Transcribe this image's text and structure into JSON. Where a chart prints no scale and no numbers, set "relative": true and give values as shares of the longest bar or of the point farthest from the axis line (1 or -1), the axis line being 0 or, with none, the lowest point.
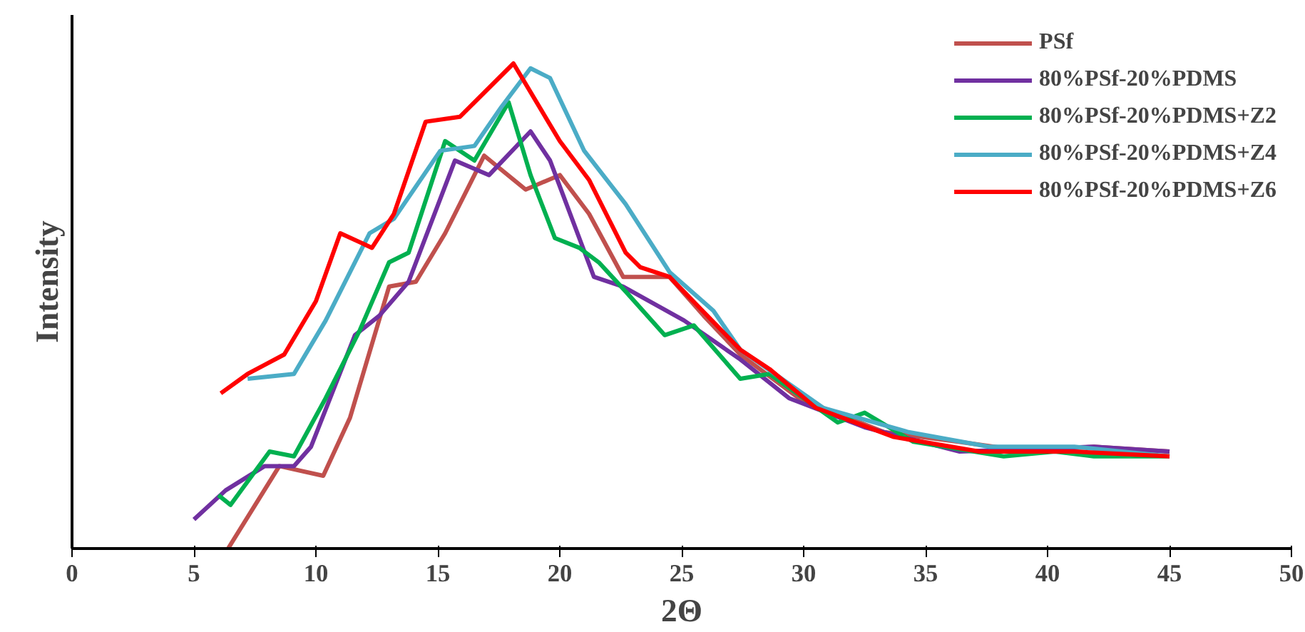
{
  "chart_data": {
    "type": "line",
    "relative": true,
    "xlabel": "2Θ",
    "ylabel": "Intensity",
    "xlim": [
      0,
      50
    ],
    "xticks": [
      0,
      5,
      10,
      15,
      20,
      25,
      30,
      35,
      40,
      45,
      50
    ],
    "grid": false,
    "legend": "top right",
    "marker": "none",
    "line_style": "solid",
    "series": [
      {
        "name": "PSf",
        "color": "#c0504d",
        "x": [
          6.4,
          8.5,
          10.3,
          11.4,
          13.0,
          14.1,
          15.3,
          16.9,
          18.6,
          20.0,
          21.2,
          22.6,
          24.5,
          25.9,
          27.4,
          29.8,
          33.3,
          36.4,
          39.2,
          41.9,
          45.0
        ],
        "values": [
          0.0,
          0.17,
          0.15,
          0.27,
          0.54,
          0.55,
          0.65,
          0.81,
          0.74,
          0.77,
          0.69,
          0.56,
          0.56,
          0.48,
          0.4,
          0.31,
          0.24,
          0.22,
          0.2,
          0.21,
          0.2
        ]
      },
      {
        "name": "80%PSf-20%PDMS",
        "color": "#7030a0",
        "x": [
          5.0,
          6.3,
          7.9,
          9.1,
          9.8,
          11.6,
          12.6,
          13.8,
          15.7,
          17.1,
          18.8,
          19.6,
          21.4,
          22.6,
          25.1,
          27.4,
          29.4,
          32.5,
          36.4,
          41.9,
          45.0
        ],
        "values": [
          0.06,
          0.12,
          0.17,
          0.17,
          0.21,
          0.44,
          0.48,
          0.55,
          0.8,
          0.77,
          0.86,
          0.8,
          0.56,
          0.54,
          0.47,
          0.39,
          0.31,
          0.25,
          0.2,
          0.21,
          0.2
        ]
      },
      {
        "name": "80%PSf-20%PDMS+Z2",
        "color": "#00b050",
        "x": [
          6.0,
          6.5,
          8.1,
          9.1,
          10.4,
          11.8,
          13.0,
          13.8,
          15.3,
          16.5,
          17.9,
          18.8,
          19.8,
          20.8,
          21.6,
          22.7,
          24.3,
          25.5,
          27.4,
          28.6,
          31.4,
          32.5,
          34.5,
          38.2,
          40.3,
          41.9,
          45.0
        ],
        "values": [
          0.11,
          0.09,
          0.2,
          0.19,
          0.31,
          0.45,
          0.59,
          0.61,
          0.84,
          0.8,
          0.92,
          0.77,
          0.64,
          0.62,
          0.59,
          0.53,
          0.44,
          0.46,
          0.35,
          0.36,
          0.26,
          0.28,
          0.22,
          0.19,
          0.2,
          0.19,
          0.19
        ]
      },
      {
        "name": "80%PSf-20%PDMS+Z4",
        "color": "#4bacc6",
        "x": [
          7.2,
          9.1,
          10.4,
          12.2,
          13.2,
          15.1,
          16.5,
          17.6,
          18.8,
          19.6,
          21.0,
          22.7,
          24.5,
          26.3,
          27.4,
          30.8,
          34.3,
          37.6,
          41.1,
          45.0
        ],
        "values": [
          0.35,
          0.36,
          0.47,
          0.65,
          0.68,
          0.82,
          0.83,
          0.91,
          0.99,
          0.97,
          0.82,
          0.71,
          0.57,
          0.49,
          0.41,
          0.29,
          0.24,
          0.21,
          0.21,
          0.19
        ]
      },
      {
        "name": "80%PSf-20%PDMS+Z6",
        "color": "#ff0000",
        "x": [
          6.1,
          7.2,
          8.7,
          10.0,
          11.0,
          12.3,
          13.2,
          14.5,
          15.9,
          18.1,
          20.0,
          21.2,
          22.7,
          23.3,
          24.5,
          27.4,
          28.6,
          30.5,
          33.7,
          37.2,
          41.1,
          45.0
        ],
        "values": [
          0.32,
          0.36,
          0.4,
          0.51,
          0.65,
          0.62,
          0.69,
          0.88,
          0.89,
          1.0,
          0.84,
          0.76,
          0.61,
          0.58,
          0.56,
          0.41,
          0.37,
          0.29,
          0.23,
          0.2,
          0.2,
          0.19
        ]
      }
    ]
  }
}
